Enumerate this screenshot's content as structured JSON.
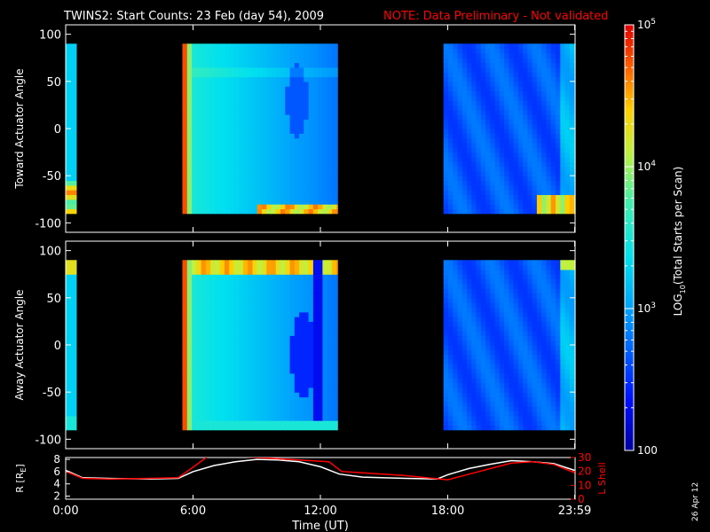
{
  "header": {
    "title": "TWINS2: Start Counts: 23 Feb (day  54), 2009",
    "note": "NOTE: Data Preliminary - Not validated"
  },
  "footer": {
    "date_stamp": "26 Apr 12"
  },
  "colors": {
    "background": "#000000",
    "axis": "#ffffff",
    "note": "#ff0000",
    "l_shell": "#ff0000",
    "radius": "#ffffff"
  },
  "chart_data": [
    {
      "type": "heatmap",
      "ylabel": "Toward Actuator Angle",
      "ylim": [
        -110,
        110
      ],
      "yticks": [
        100,
        50,
        0,
        -50,
        -100
      ],
      "xlim": [
        0,
        24
      ],
      "data_y_range": [
        -90,
        90
      ],
      "data_segments": [
        {
          "x_start": 0.0,
          "x_end": 0.5
        },
        {
          "x_start": 5.5,
          "x_end": 12.8
        },
        {
          "x_start": 17.8,
          "x_end": 24.0
        }
      ]
    },
    {
      "type": "heatmap",
      "ylabel": "Away Actuator Angle",
      "ylim": [
        -110,
        110
      ],
      "yticks": [
        100,
        50,
        0,
        -50,
        -100
      ],
      "xlim": [
        0,
        24
      ],
      "data_y_range": [
        -90,
        90
      ],
      "data_segments": [
        {
          "x_start": 0.0,
          "x_end": 0.5
        },
        {
          "x_start": 5.5,
          "x_end": 12.8
        },
        {
          "x_start": 17.8,
          "x_end": 24.0
        }
      ]
    },
    {
      "type": "line",
      "xlabel": "Time (UT)",
      "xlim": [
        0,
        24
      ],
      "xtick_labels": [
        "0:00",
        "6:00",
        "12:00",
        "18:00",
        "23:59"
      ],
      "xtick_values": [
        0,
        6,
        12,
        18,
        23.98
      ],
      "ylabel_left": "R [R",
      "ylabel_left_sub": "E",
      "ylabel_left_close": "]",
      "ylim_left": [
        1.5,
        8.3
      ],
      "yticks_left": [
        2,
        4,
        6,
        8
      ],
      "ylabel_right": "L Shell",
      "ylim_right": [
        0,
        30
      ],
      "yticks_right": [
        0,
        10,
        20,
        30
      ],
      "series": [
        {
          "axis": "left",
          "color": "#ffffff",
          "x": [
            0,
            0.8,
            2,
            4,
            5.3,
            6,
            7,
            8,
            9,
            10,
            11,
            12,
            12.9,
            14,
            16,
            17.5,
            18,
            19,
            20,
            21,
            22,
            23,
            23.98
          ],
          "y": [
            6.2,
            5.0,
            4.9,
            4.8,
            4.9,
            6.0,
            7.0,
            7.6,
            8.0,
            7.9,
            7.6,
            6.8,
            5.6,
            5.1,
            4.9,
            4.8,
            5.5,
            6.5,
            7.2,
            7.8,
            7.6,
            7.3,
            6.2
          ]
        },
        {
          "axis": "right",
          "color": "#ff0000",
          "x": [
            0,
            0.8,
            2,
            4,
            5.3,
            6,
            6.8,
            12.4,
            13,
            14,
            16,
            18,
            19,
            20,
            21,
            22,
            23,
            23.98
          ],
          "y": [
            20,
            15,
            14.5,
            15,
            15.5,
            23,
            32,
            27,
            20,
            19,
            17,
            14,
            18,
            22,
            26,
            27,
            25,
            19
          ]
        }
      ]
    }
  ],
  "colorbar": {
    "label_prefix": "LOG",
    "label_sub": "10",
    "label_suffix": "(Total Starts per Scan)",
    "range": [
      100,
      100000
    ],
    "ticks": [
      {
        "value": 100000,
        "base": "10",
        "exp": "5"
      },
      {
        "value": 10000,
        "base": "10",
        "exp": "4"
      },
      {
        "value": 1000,
        "base": "10",
        "exp": "3"
      },
      {
        "value": 100,
        "base": "100",
        "exp": ""
      }
    ]
  }
}
